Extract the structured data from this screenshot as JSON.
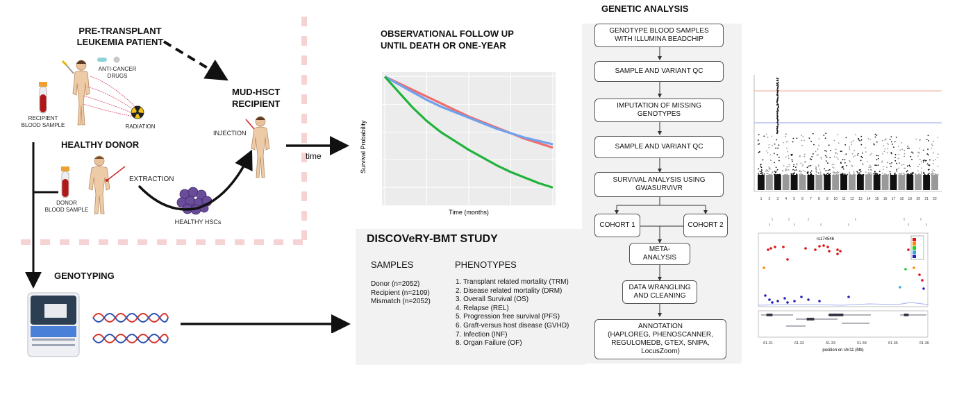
{
  "left": {
    "patient_title_1": "PRE-TRANSPLANT",
    "patient_title_2": "LEUKEMIA PATIENT",
    "anticancer_1": "ANTI-CANCER",
    "anticancer_2": "DRUGS",
    "radiation": "RADIATION",
    "recipient_sample_1": "RECIPIENT",
    "recipient_sample_2": "BLOOD SAMPLE",
    "donor_title": "HEALTHY DONOR",
    "extraction": "EXTRACTION",
    "donor_sample_1": "DONOR",
    "donor_sample_2": "BLOOD SAMPLE",
    "hscs": "HEALTHY HSCs",
    "mud_1": "MUD-HSCT",
    "mud_2": "RECIPIENT",
    "injection": "INJECTION",
    "time": "time",
    "genotyping": "GENOTYPING"
  },
  "followup": {
    "title_1": "OBSERVATIONAL FOLLOW UP",
    "title_2": "UNTIL DEATH OR ONE-YEAR"
  },
  "chart_data": {
    "type": "line",
    "xlabel": "Time (months)",
    "ylabel": "Survival Probability",
    "x": [
      0,
      1,
      2,
      3,
      4,
      5,
      6,
      7,
      8,
      9,
      10,
      11,
      12
    ],
    "ylim": [
      0,
      1
    ],
    "xlim": [
      0,
      12
    ],
    "series": [
      {
        "color": "#f06c6c",
        "values": [
          1.0,
          0.97,
          0.94,
          0.91,
          0.88,
          0.85,
          0.82,
          0.795,
          0.77,
          0.745,
          0.72,
          0.7,
          0.68
        ]
      },
      {
        "color": "#6fa1ec",
        "values": [
          1.0,
          0.965,
          0.93,
          0.895,
          0.865,
          0.84,
          0.815,
          0.79,
          0.765,
          0.745,
          0.725,
          0.71,
          0.695
        ]
      },
      {
        "color": "#21b23a",
        "values": [
          1.0,
          0.93,
          0.86,
          0.8,
          0.75,
          0.71,
          0.67,
          0.635,
          0.6,
          0.57,
          0.545,
          0.52,
          0.5
        ]
      }
    ]
  },
  "study": {
    "title": "DISCOVeRY-BMT STUDY",
    "samples_header": "SAMPLES",
    "samples": [
      "Donor (n=2052)",
      "Recipient (n=2109)",
      "Mismatch (n=2052)"
    ],
    "phenotypes_header": "PHENOTYPES",
    "phenotypes": [
      "1.  Transplant related mortality (TRM)",
      "2.  Disease related mortality (DRM)",
      "3.  Overall Survival (OS)",
      "4.  Relapse (REL)",
      "5.  Progression free survival (PFS)",
      "6.  Graft-versus host disease (GVHD)",
      "7.  Infection (INF)",
      "8.  Organ Failure (OF)"
    ]
  },
  "genetic": {
    "title": "GENETIC ANALYSIS",
    "step1_1": "GENOTYPE BLOOD SAMPLES",
    "step1_2": "WITH ILLUMINA BEADCHIP",
    "step2": "SAMPLE AND VARIANT QC",
    "step3_1": "IMPUTATION OF MISSING",
    "step3_2": "GENOTYPES",
    "step4": "SAMPLE AND VARIANT QC",
    "step5_1": "SURVIVAL ANALYSIS USING",
    "step5_2": "GWASURVIVR",
    "cohort1": "COHORT 1",
    "cohort2": "COHORT 2",
    "meta": "META-ANALYSIS",
    "wrangle_1": "DATA WRANGLING",
    "wrangle_2": "AND CLEANING",
    "annot_1": "ANNOTATION",
    "annot_2": "(HAPLOREG, PHENOSCANNER,",
    "annot_3": "REGULOMEDB, GTEX, SNIPA,",
    "annot_4": "LocusZoom)"
  },
  "manhattan": {
    "chromosomes": [
      "1",
      "2",
      "3",
      "4",
      "5",
      "6",
      "7",
      "8",
      "9",
      "10",
      "11",
      "12",
      "13",
      "14",
      "15",
      "16",
      "17",
      "18",
      "19",
      "20",
      "21",
      "22"
    ]
  },
  "locuszoom": {
    "snp": "rs174546",
    "positions": [
      "61.31",
      "61.32",
      "61.33",
      "61.34",
      "61.35",
      "61.36"
    ],
    "xlabel": "position on chr11 (Mb)"
  }
}
